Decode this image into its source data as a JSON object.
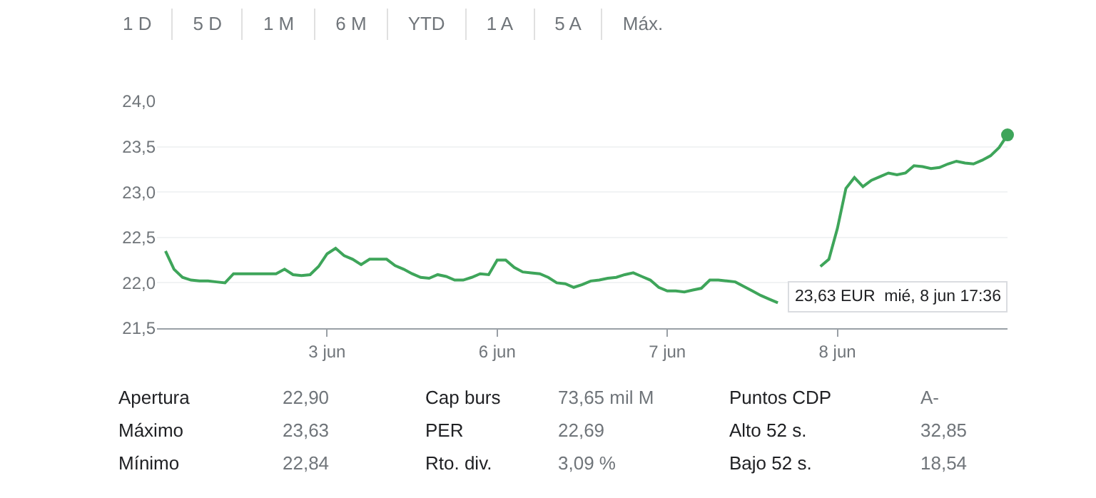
{
  "chart_data": [
    {
      "type": "other",
      "annotations": [
        "1 D",
        "5 D",
        "1 M",
        "6 M",
        "YTD",
        "1 A",
        "5 A",
        "Máx."
      ]
    },
    {
      "type": "line",
      "grid": "y",
      "marker": "none",
      "line_style": "solid",
      "categories": [
        null,
        null,
        null,
        null,
        null,
        null,
        null,
        null,
        null,
        null,
        null,
        null,
        null,
        null,
        null,
        null,
        null,
        null,
        null,
        "3 jun",
        null,
        null,
        null,
        null,
        null,
        null,
        null,
        null,
        null,
        null,
        null,
        null,
        null,
        null,
        null,
        null,
        null,
        null,
        null,
        "6 jun",
        null,
        null,
        null,
        null,
        null,
        null,
        null,
        null,
        null,
        null,
        null,
        null,
        null,
        null,
        null,
        null,
        null,
        null,
        null,
        "7 jun",
        null,
        null,
        null,
        null,
        null,
        null,
        null,
        null,
        null,
        null,
        null,
        null,
        null,
        null,
        null,
        null,
        null,
        null,
        null,
        "8 jun",
        null,
        null,
        null,
        null,
        null,
        null,
        null,
        null,
        null,
        null,
        null,
        null,
        null,
        null,
        null,
        null,
        null,
        null,
        null,
        null
      ],
      "ylim": [
        21.5,
        24.0
      ],
      "yticks": [
        {
          "value": 21.5,
          "label": "21,5"
        },
        {
          "value": 22.0,
          "label": "22,0"
        },
        {
          "value": 22.5,
          "label": "22,5"
        },
        {
          "value": 23.0,
          "label": "23,0"
        },
        {
          "value": 23.5,
          "label": "23,5"
        },
        {
          "value": 24.0,
          "label": "24,0"
        }
      ],
      "series": [
        {
          "color": "#3ea55a",
          "values": [
            22.35,
            22.15,
            22.06,
            22.03,
            22.02,
            22.02,
            22.01,
            22.0,
            22.1,
            22.1,
            22.1,
            22.1,
            22.1,
            22.1,
            22.15,
            22.09,
            22.08,
            22.09,
            22.18,
            22.32,
            22.38,
            22.3,
            22.26,
            22.2,
            22.26,
            22.26,
            22.26,
            22.19,
            22.15,
            22.1,
            22.06,
            22.05,
            22.09,
            22.07,
            22.03,
            22.03,
            22.06,
            22.1,
            22.09,
            22.25,
            22.25,
            22.17,
            22.12,
            22.11,
            22.1,
            22.06,
            22.0,
            21.99,
            21.95,
            21.98,
            22.02,
            22.03,
            22.05,
            22.06,
            22.09,
            22.11,
            22.07,
            22.03,
            21.95,
            21.91,
            21.91,
            21.9,
            21.92,
            21.94,
            22.03,
            22.03,
            22.02,
            22.01,
            21.96,
            21.91,
            21.86,
            21.82,
            21.78,
            null,
            null,
            null,
            null,
            22.18,
            22.26,
            22.6,
            23.04,
            23.16,
            23.06,
            23.13,
            23.17,
            23.21,
            23.19,
            23.21,
            23.29,
            23.28,
            23.26,
            23.27,
            23.31,
            23.34,
            23.32,
            23.31,
            23.35,
            23.4,
            23.49,
            23.63
          ]
        },
        {
          "type": "scatter",
          "marker": "circle",
          "color": "#3ea55a",
          "values": [
            null,
            null,
            null,
            null,
            null,
            null,
            null,
            null,
            null,
            null,
            null,
            null,
            null,
            null,
            null,
            null,
            null,
            null,
            null,
            null,
            null,
            null,
            null,
            null,
            null,
            null,
            null,
            null,
            null,
            null,
            null,
            null,
            null,
            null,
            null,
            null,
            null,
            null,
            null,
            null,
            null,
            null,
            null,
            null,
            null,
            null,
            null,
            null,
            null,
            null,
            null,
            null,
            null,
            null,
            null,
            null,
            null,
            null,
            null,
            null,
            null,
            null,
            null,
            null,
            null,
            null,
            null,
            null,
            null,
            null,
            null,
            null,
            null,
            null,
            null,
            null,
            null,
            null,
            null,
            null,
            null,
            null,
            null,
            null,
            null,
            null,
            null,
            null,
            null,
            null,
            null,
            null,
            null,
            null,
            null,
            null,
            null,
            null,
            null,
            23.63
          ]
        }
      ],
      "annotations": [
        "23,63 EUR  mié, 8 jun 17:36"
      ]
    },
    {
      "type": "other",
      "annotations": [
        "Apertura",
        "22,90",
        "Cap burs",
        "73,65 mil M",
        "Puntos CDP",
        "A-",
        "Máximo",
        "23,63",
        "PER",
        "22,69",
        "Alto 52 s.",
        "32,85",
        "Mínimo",
        "22,84",
        "Rto. div.",
        "3,09 %",
        "Bajo 52 s.",
        "18,54"
      ]
    }
  ]
}
